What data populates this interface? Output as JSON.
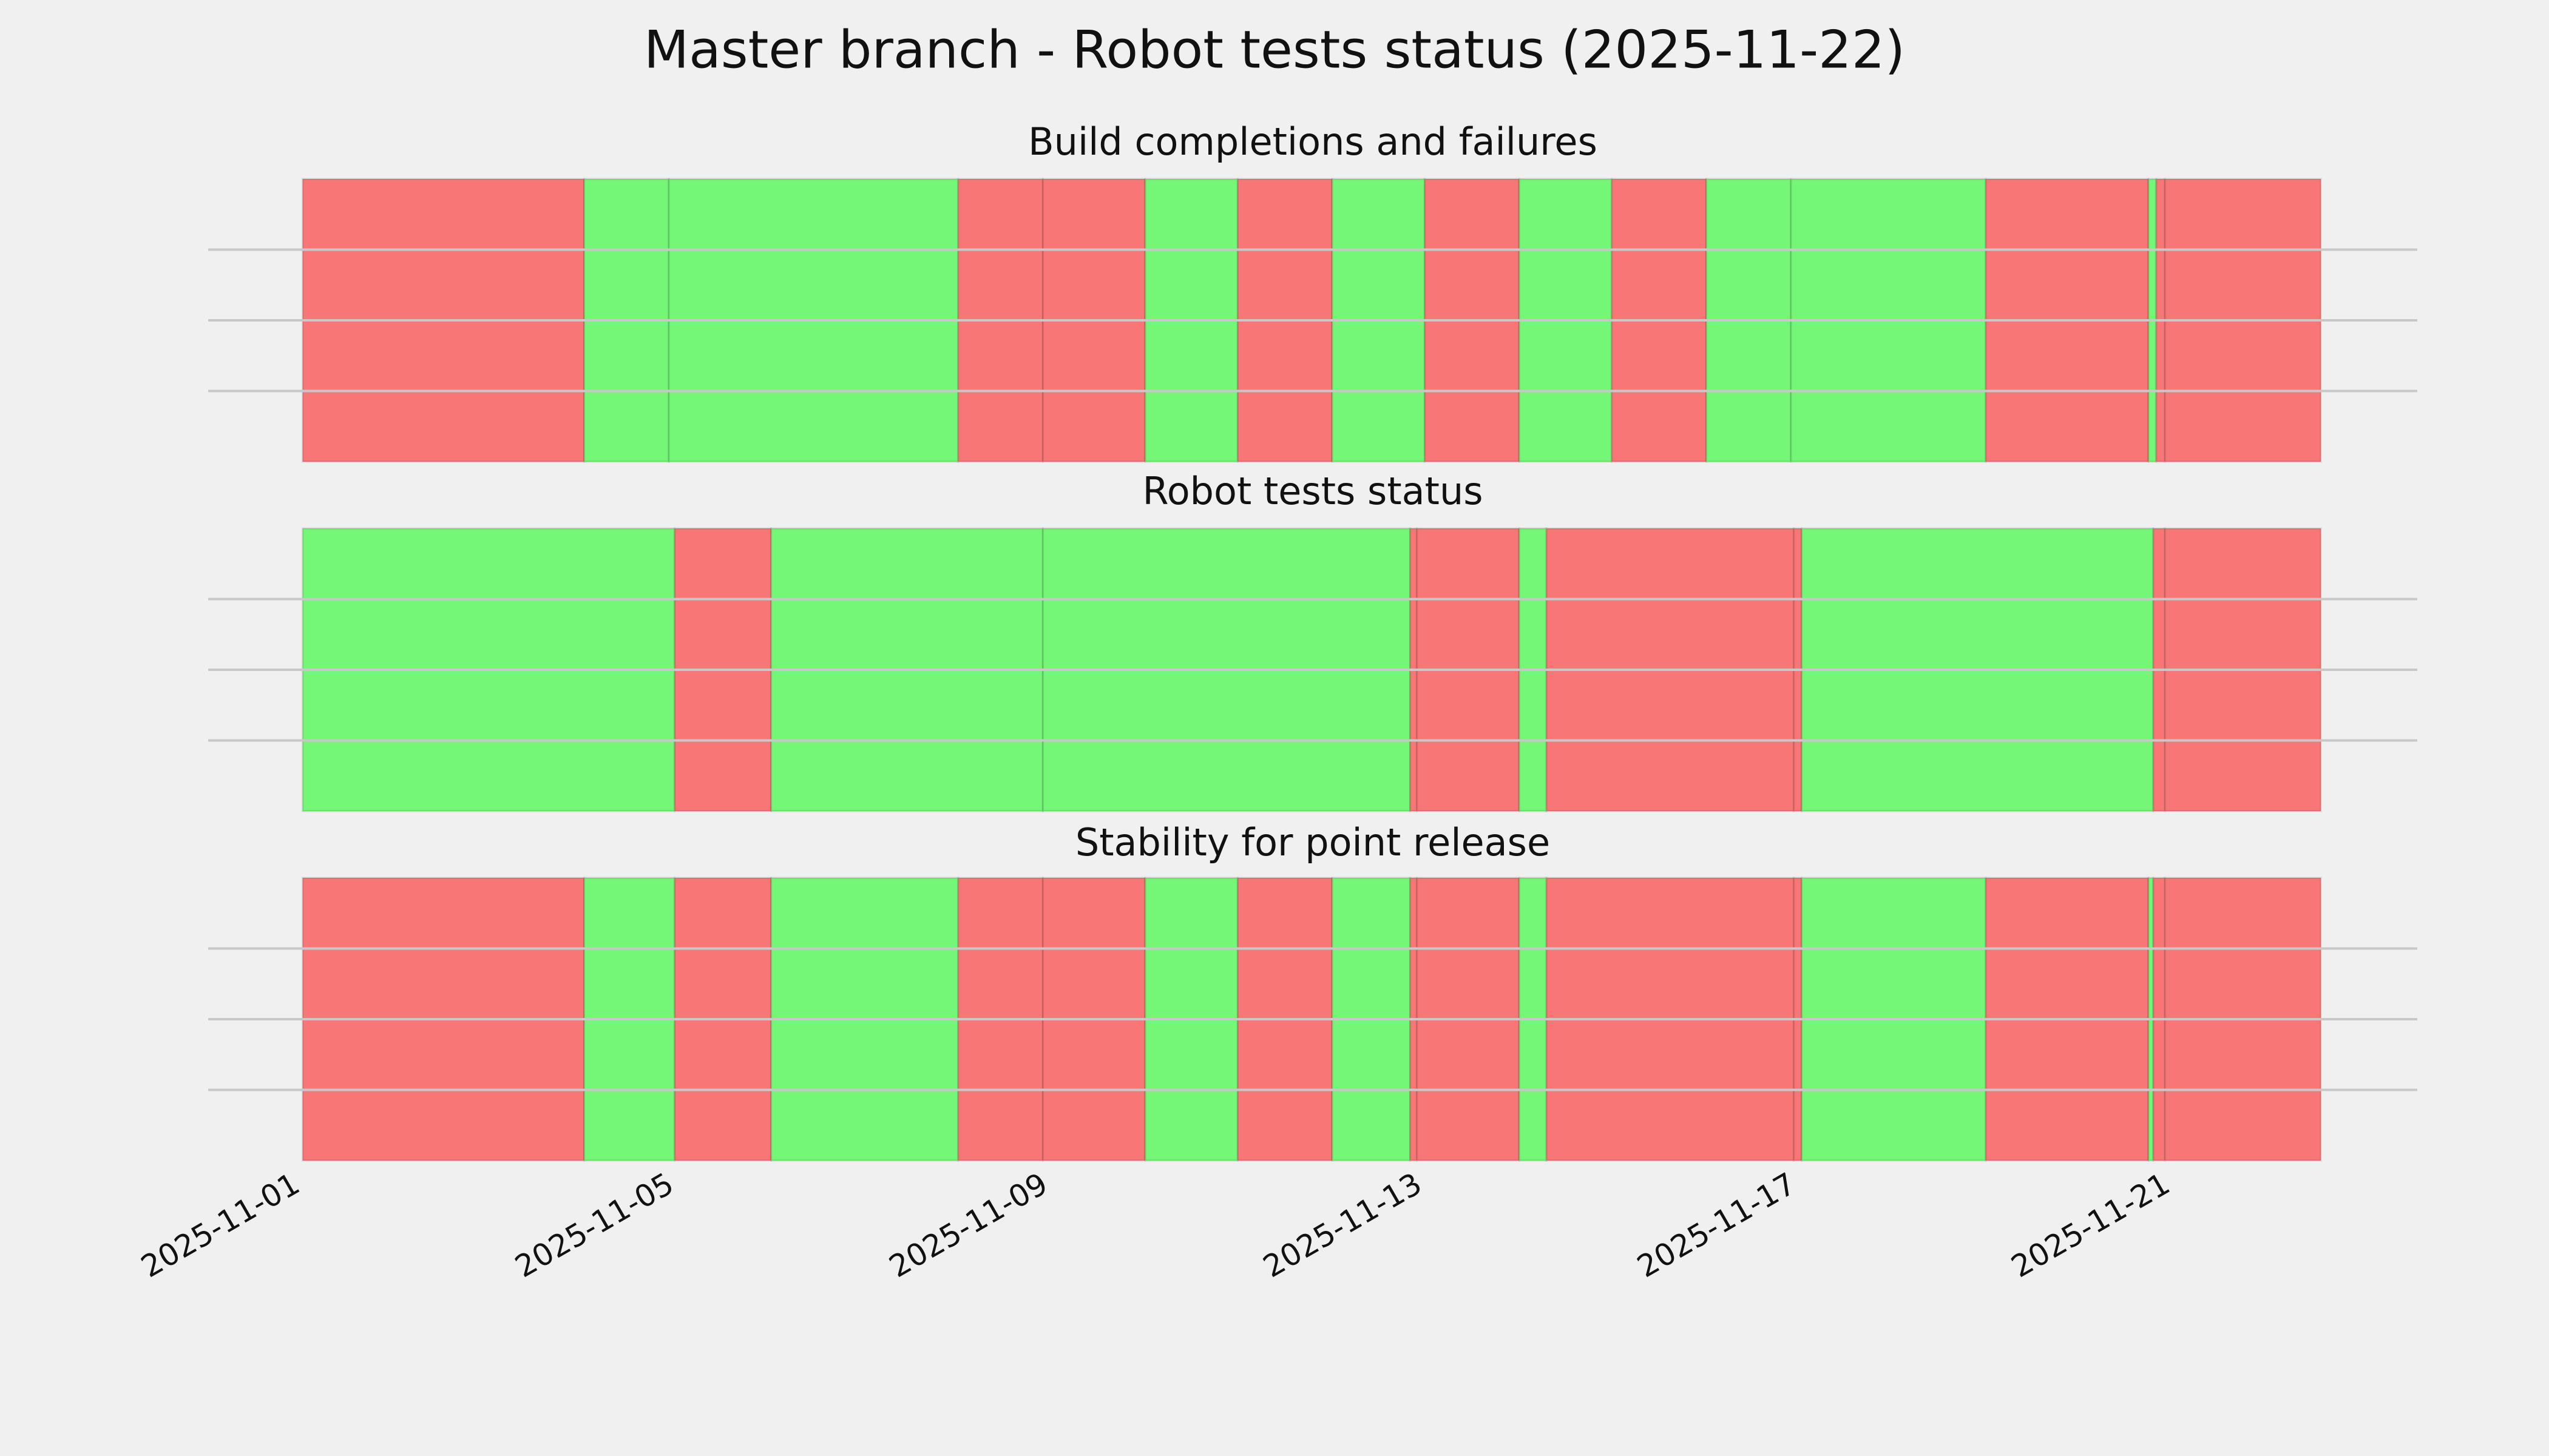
{
  "chart_data": [
    {
      "type": "timeline",
      "title": "Master branch - Robot tests status (2025-11-22)",
      "subtitle": "Build completions and failures",
      "xlim": [
        "2025-10-31T01:00",
        "2025-11-23T16:00"
      ],
      "xticks": [
        "2025-11-01",
        "2025-11-05",
        "2025-11-09",
        "2025-11-13",
        "2025-11-17",
        "2025-11-21"
      ],
      "ylim": [
        0,
        1
      ],
      "yticks": [
        0.25,
        0.5,
        0.75
      ],
      "grid": true,
      "spans": [
        {
          "start": "2025-11-01T01:15",
          "end": "2025-11-04T01:30",
          "color": "#f87776"
        },
        {
          "start": "2025-11-04T01:30",
          "end": "2025-11-04T23:15",
          "color": "#74f677"
        },
        {
          "start": "2025-11-04T23:15",
          "end": "2025-11-08T01:30",
          "color": "#74f677"
        },
        {
          "start": "2025-11-08T01:30",
          "end": "2025-11-08T23:15",
          "color": "#f87776"
        },
        {
          "start": "2025-11-08T23:15",
          "end": "2025-11-10T01:30",
          "color": "#f87776"
        },
        {
          "start": "2025-11-10T01:30",
          "end": "2025-11-11T01:15",
          "color": "#74f677"
        },
        {
          "start": "2025-11-11T01:15",
          "end": "2025-11-12T01:30",
          "color": "#f87776"
        },
        {
          "start": "2025-11-12T01:30",
          "end": "2025-11-13T01:15",
          "color": "#74f677"
        },
        {
          "start": "2025-11-13T01:15",
          "end": "2025-11-14T01:30",
          "color": "#f87776"
        },
        {
          "start": "2025-11-14T01:30",
          "end": "2025-11-15T01:15",
          "color": "#74f677"
        },
        {
          "start": "2025-11-15T01:15",
          "end": "2025-11-16T01:30",
          "color": "#f87776"
        },
        {
          "start": "2025-11-16T01:30",
          "end": "2025-11-16T23:15",
          "color": "#74f677"
        },
        {
          "start": "2025-11-16T23:15",
          "end": "2025-11-19T01:15",
          "color": "#74f677"
        },
        {
          "start": "2025-11-19T01:15",
          "end": "2025-11-20T19:00",
          "color": "#f87776"
        },
        {
          "start": "2025-11-20T19:00",
          "end": "2025-11-20T21:00",
          "color": "#74f677"
        },
        {
          "start": "2025-11-20T21:00",
          "end": "2025-11-20T23:15",
          "color": "#f87776"
        },
        {
          "start": "2025-11-20T23:15",
          "end": "2025-11-22T15:15",
          "color": "#f87776"
        }
      ]
    },
    {
      "type": "timeline",
      "subtitle": "Robot tests status",
      "xlim": [
        "2025-10-31T01:00",
        "2025-11-23T16:00"
      ],
      "ylim": [
        0,
        1
      ],
      "yticks": [
        0.25,
        0.5,
        0.75
      ],
      "grid": true,
      "spans": [
        {
          "start": "2025-11-01T01:15",
          "end": "2025-11-05T00:45",
          "color": "#74f677"
        },
        {
          "start": "2025-11-05T00:45",
          "end": "2025-11-06T01:30",
          "color": "#f87776"
        },
        {
          "start": "2025-11-06T01:30",
          "end": "2025-11-08T23:15",
          "color": "#74f677"
        },
        {
          "start": "2025-11-08T23:15",
          "end": "2025-11-12T21:30",
          "color": "#74f677"
        },
        {
          "start": "2025-11-12T21:30",
          "end": "2025-11-12T23:15",
          "color": "#f87776"
        },
        {
          "start": "2025-11-12T23:15",
          "end": "2025-11-14T01:30",
          "color": "#f87776"
        },
        {
          "start": "2025-11-14T01:30",
          "end": "2025-11-14T08:30",
          "color": "#74f677"
        },
        {
          "start": "2025-11-14T08:30",
          "end": "2025-11-17T00:00",
          "color": "#f87776"
        },
        {
          "start": "2025-11-17T00:00",
          "end": "2025-11-17T02:00",
          "color": "#f87776"
        },
        {
          "start": "2025-11-17T02:00",
          "end": "2025-11-20T20:15",
          "color": "#74f677"
        },
        {
          "start": "2025-11-20T20:15",
          "end": "2025-11-20T23:15",
          "color": "#f87776"
        },
        {
          "start": "2025-11-20T23:15",
          "end": "2025-11-22T15:15",
          "color": "#f87776"
        }
      ]
    },
    {
      "type": "timeline",
      "subtitle": "Stability for point release",
      "xlim": [
        "2025-10-31T01:00",
        "2025-11-23T16:00"
      ],
      "ylim": [
        0,
        1
      ],
      "yticks": [
        0.25,
        0.5,
        0.75
      ],
      "grid": true,
      "spans": [
        {
          "start": "2025-11-01T01:15",
          "end": "2025-11-04T01:30",
          "color": "#f87776"
        },
        {
          "start": "2025-11-04T01:30",
          "end": "2025-11-05T00:45",
          "color": "#74f677"
        },
        {
          "start": "2025-11-05T00:45",
          "end": "2025-11-06T01:30",
          "color": "#f87776"
        },
        {
          "start": "2025-11-06T01:30",
          "end": "2025-11-08T01:30",
          "color": "#74f677"
        },
        {
          "start": "2025-11-08T01:30",
          "end": "2025-11-08T23:15",
          "color": "#f87776"
        },
        {
          "start": "2025-11-08T23:15",
          "end": "2025-11-10T01:30",
          "color": "#f87776"
        },
        {
          "start": "2025-11-10T01:30",
          "end": "2025-11-11T01:15",
          "color": "#74f677"
        },
        {
          "start": "2025-11-11T01:15",
          "end": "2025-11-12T01:30",
          "color": "#f87776"
        },
        {
          "start": "2025-11-12T01:30",
          "end": "2025-11-12T21:30",
          "color": "#74f677"
        },
        {
          "start": "2025-11-12T21:30",
          "end": "2025-11-12T23:15",
          "color": "#f87776"
        },
        {
          "start": "2025-11-12T23:15",
          "end": "2025-11-14T01:30",
          "color": "#f87776"
        },
        {
          "start": "2025-11-14T01:30",
          "end": "2025-11-14T08:30",
          "color": "#74f677"
        },
        {
          "start": "2025-11-14T08:30",
          "end": "2025-11-17T00:00",
          "color": "#f87776"
        },
        {
          "start": "2025-11-17T00:00",
          "end": "2025-11-17T02:00",
          "color": "#f87776"
        },
        {
          "start": "2025-11-17T02:00",
          "end": "2025-11-19T01:15",
          "color": "#74f677"
        },
        {
          "start": "2025-11-19T01:15",
          "end": "2025-11-20T19:00",
          "color": "#f87776"
        },
        {
          "start": "2025-11-20T19:00",
          "end": "2025-11-20T20:15",
          "color": "#74f677"
        },
        {
          "start": "2025-11-20T20:15",
          "end": "2025-11-20T23:15",
          "color": "#f87776"
        },
        {
          "start": "2025-11-20T23:15",
          "end": "2025-11-22T15:15",
          "color": "#f87776"
        }
      ]
    }
  ]
}
